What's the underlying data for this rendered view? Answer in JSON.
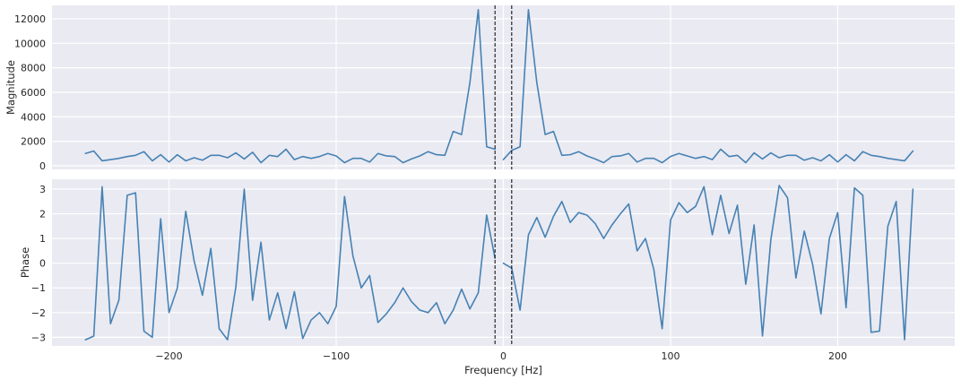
{
  "figure": {
    "line_color": "#4682b4",
    "vline_color": "#000000"
  },
  "chart_data": [
    {
      "type": "line",
      "ylabel": "Magnitude",
      "xlabel": "",
      "xlim": [
        -270,
        270
      ],
      "ylim": [
        -300,
        13100
      ],
      "x_ticks": [
        -200,
        -100,
        0,
        100,
        200
      ],
      "x_tick_labels": [
        "",
        "",
        "",
        "",
        ""
      ],
      "y_ticks": [
        0,
        2000,
        4000,
        6000,
        8000,
        10000,
        12000
      ],
      "y_tick_labels": [
        "0",
        "2000",
        "4000",
        "6000",
        "8000",
        "10000",
        "12000"
      ],
      "grid": true,
      "vlines": [
        -5,
        5
      ],
      "series": [
        {
          "segments": [
            {
              "x": [
                -250,
                -245,
                -240,
                -235,
                -230,
                -225,
                -220,
                -215,
                -210,
                -205,
                -200,
                -195,
                -190,
                -185,
                -180,
                -175,
                -170,
                -165,
                -160,
                -155,
                -150,
                -145,
                -140,
                -135,
                -130,
                -125,
                -120,
                -115,
                -110,
                -105,
                -100,
                -95,
                -90,
                -85,
                -80,
                -75,
                -70,
                -65,
                -60,
                -55,
                -50,
                -45,
                -40,
                -35,
                -30,
                -25,
                -20,
                -15,
                -10,
                -5
              ],
              "y": [
                1000,
                1200,
                400,
                500,
                600,
                750,
                850,
                1150,
                400,
                900,
                300,
                900,
                400,
                650,
                450,
                850,
                850,
                650,
                1050,
                550,
                1100,
                250,
                850,
                750,
                1350,
                500,
                750,
                600,
                750,
                1000,
                800,
                250,
                600,
                600,
                300,
                1000,
                800,
                750,
                250,
                550,
                800,
                1150,
                900,
                850,
                2800,
                2550,
                6800,
                12750,
                1550,
                1350
              ]
            },
            {
              "x": [
                0,
                5,
                10,
                15,
                20,
                25,
                30,
                35,
                40,
                45,
                50,
                55,
                60,
                65,
                70,
                75,
                80,
                85,
                90,
                95,
                100,
                105,
                110,
                115,
                120,
                125,
                130,
                135,
                140,
                145,
                150,
                155,
                160,
                165,
                170,
                175,
                180,
                185,
                190,
                195,
                200,
                205,
                210,
                215,
                220,
                225,
                230,
                235,
                240,
                245
              ],
              "y": [
                500,
                1250,
                1550,
                12750,
                6800,
                2550,
                2800,
                850,
                900,
                1150,
                800,
                550,
                250,
                750,
                800,
                1000,
                300,
                600,
                600,
                250,
                750,
                1000,
                800,
                600,
                750,
                500,
                1350,
                750,
                850,
                250,
                1050,
                550,
                1050,
                650,
                850,
                850,
                450,
                650,
                400,
                900,
                300,
                900,
                400,
                1150,
                850,
                750,
                600,
                500,
                400,
                1200
              ]
            }
          ]
        }
      ]
    },
    {
      "type": "line",
      "ylabel": "Phase",
      "xlabel": "Frequency [Hz]",
      "xlim": [
        -270,
        270
      ],
      "ylim": [
        -3.35,
        3.4
      ],
      "x_ticks": [
        -200,
        -100,
        0,
        100,
        200
      ],
      "x_tick_labels": [
        "−200",
        "−100",
        "0",
        "100",
        "200"
      ],
      "y_ticks": [
        -3,
        -2,
        -1,
        0,
        1,
        2,
        3
      ],
      "y_tick_labels": [
        "−3",
        "−2",
        "−1",
        "0",
        "1",
        "2",
        "3"
      ],
      "grid": true,
      "vlines": [
        -5,
        5
      ],
      "series": [
        {
          "segments": [
            {
              "x": [
                -250,
                -245,
                -240,
                -235,
                -230,
                -225,
                -220,
                -215,
                -210,
                -205,
                -200,
                -195,
                -190,
                -185,
                -180,
                -175,
                -170,
                -165,
                -160,
                -155,
                -150,
                -145,
                -140,
                -135,
                -130,
                -125,
                -120,
                -115,
                -110,
                -105,
                -100,
                -95,
                -90,
                -85,
                -80,
                -75,
                -70,
                -65,
                -60,
                -55,
                -50,
                -45,
                -40,
                -35,
                -30,
                -25,
                -20,
                -15,
                -10,
                -5
              ],
              "y": [
                -3.1,
                -2.95,
                3.1,
                -2.45,
                -1.5,
                2.75,
                2.85,
                -2.75,
                -3.0,
                1.8,
                -2.0,
                -1.0,
                2.1,
                0.1,
                -1.3,
                0.6,
                -2.65,
                -3.1,
                -0.95,
                3.0,
                -1.5,
                0.85,
                -2.3,
                -1.2,
                -2.65,
                -1.15,
                -3.05,
                -2.3,
                -2.0,
                -2.45,
                -1.75,
                2.7,
                0.3,
                -1.0,
                -0.5,
                -2.4,
                -2.05,
                -1.6,
                -1.0,
                -1.55,
                -1.9,
                -2.0,
                -1.6,
                -2.45,
                -1.9,
                -1.05,
                -1.85,
                -1.2,
                1.95,
                0.2
              ]
            },
            {
              "x": [
                0,
                5,
                10,
                15,
                20,
                25,
                30,
                35,
                40,
                45,
                50,
                55,
                60,
                65,
                70,
                75,
                80,
                85,
                90,
                95,
                100,
                105,
                110,
                115,
                120,
                125,
                130,
                135,
                140,
                145,
                150,
                155,
                160,
                165,
                170,
                175,
                180,
                185,
                190,
                195,
                200,
                205,
                210,
                215,
                220,
                225,
                230,
                235,
                240,
                245
              ],
              "y": [
                0.0,
                -0.2,
                -1.9,
                1.15,
                1.85,
                1.05,
                1.9,
                2.5,
                1.65,
                2.05,
                1.95,
                1.6,
                1.0,
                1.55,
                2.0,
                2.4,
                0.5,
                1.0,
                -0.25,
                -2.65,
                1.75,
                2.45,
                2.05,
                2.3,
                3.1,
                1.15,
                2.75,
                1.2,
                2.35,
                -0.85,
                1.55,
                -2.95,
                0.95,
                3.15,
                2.65,
                -0.6,
                1.3,
                -0.05,
                -2.05,
                1.0,
                2.05,
                -1.8,
                3.05,
                2.75,
                -2.8,
                -2.75,
                1.5,
                2.5,
                -3.1,
                3.0
              ]
            }
          ]
        }
      ]
    }
  ]
}
